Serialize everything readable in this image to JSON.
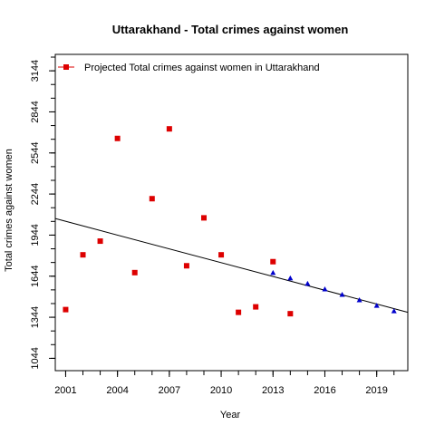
{
  "chart_data": {
    "type": "scatter",
    "title": "Uttarakhand  -  Total crimes against women",
    "xlabel": "Year",
    "ylabel": "Total crimes against women",
    "xlim": [
      2000.4,
      2020.8
    ],
    "ylim": [
      954,
      3264
    ],
    "x_ticks": [
      2001,
      2004,
      2007,
      2010,
      2013,
      2016,
      2019
    ],
    "x_minor_ticks": [
      2001,
      2002,
      2003,
      2004,
      2005,
      2006,
      2007,
      2008,
      2009,
      2010,
      2011,
      2012,
      2013,
      2014,
      2015,
      2016,
      2017,
      2018,
      2019,
      2020
    ],
    "y_ticks": [
      1044,
      1344,
      1644,
      1944,
      2244,
      2544,
      2844,
      3144
    ],
    "y_minor_ticks": [
      1044,
      1144,
      1244,
      1344,
      1444,
      1544,
      1644,
      1744,
      1844,
      1944,
      2044,
      2144,
      2244,
      2344,
      2444,
      2544,
      2644,
      2744,
      2844,
      2944,
      3044,
      3144,
      3244
    ],
    "legend": {
      "label": "Projected  Total crimes against women  in  Uttarakhand",
      "position": "top-left"
    },
    "grid": false,
    "series": [
      {
        "name": "Projected  Total crimes against women  in  Uttarakhand",
        "marker": "square",
        "color": "#dd0000",
        "x": [
          2001,
          2002,
          2003,
          2004,
          2005,
          2006,
          2007,
          2008,
          2009,
          2010,
          2011,
          2012,
          2013,
          2014
        ],
        "y": [
          1400,
          1800,
          1900,
          2650,
          1670,
          2210,
          2720,
          1720,
          2070,
          1800,
          1380,
          1420,
          1750,
          1370
        ]
      },
      {
        "marker": "triangle",
        "color": "#0000cc",
        "x": [
          2013,
          2014,
          2015,
          2016,
          2017,
          2018,
          2019,
          2020
        ],
        "y": [
          1670,
          1630,
          1590,
          1550,
          1510,
          1470,
          1430,
          1390
        ]
      }
    ],
    "trend_line": {
      "x": [
        2000.4,
        2020.8
      ],
      "y": [
        2065,
        1380
      ]
    }
  }
}
